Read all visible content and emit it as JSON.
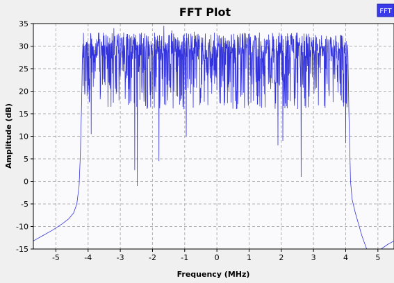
{
  "chart_data": {
    "type": "line",
    "title": "FFT Plot",
    "xlabel": "Frequency (MHz)",
    "ylabel": "Amplitude (dB)",
    "xlim": [
      -5.7,
      5.5
    ],
    "ylim": [
      -15,
      35
    ],
    "x_ticks": [
      -5,
      -4,
      -3,
      -2,
      -1,
      0,
      1,
      2,
      3,
      4,
      5
    ],
    "x_tick_labels": [
      "-5",
      "-4",
      "-3",
      "-2",
      "-1",
      "0",
      "1",
      "2",
      "3",
      "4",
      "5"
    ],
    "y_ticks": [
      -15,
      -10,
      -5,
      0,
      5,
      10,
      15,
      20,
      25,
      30,
      35
    ],
    "y_tick_labels": [
      "-15",
      "-10",
      "-5",
      "0",
      "5",
      "10",
      "15",
      "20",
      "25",
      "30",
      "35"
    ],
    "grid": true,
    "legend": {
      "position": "top-right",
      "entries": [
        "FFT"
      ]
    },
    "series": [
      {
        "name": "FFT",
        "color": "#3333dd",
        "x": [
          -5.7,
          -5.4,
          -5.1,
          -4.8,
          -4.6,
          -4.45,
          -4.35,
          -4.28,
          -4.24,
          -4.2,
          -4.18,
          -4.16
        ],
        "y": [
          -13.2,
          -12.0,
          -10.8,
          -9.4,
          -8.3,
          -7.0,
          -5.0,
          -1.0,
          6.0,
          18.0,
          27.0,
          30.5
        ],
        "band": {
          "x_start": -4.16,
          "x_end": 4.07,
          "typical_min": 16,
          "typical_max": 33,
          "peak": 34.5
        },
        "dips": [
          {
            "x": -3.9,
            "y": 10.5
          },
          {
            "x": -2.55,
            "y": 2.5
          },
          {
            "x": -2.47,
            "y": -1.0
          },
          {
            "x": -1.8,
            "y": 4.5
          },
          {
            "x": -0.95,
            "y": 10.0
          },
          {
            "x": 1.9,
            "y": 8.0
          },
          {
            "x": 2.05,
            "y": 9.0
          },
          {
            "x": 2.62,
            "y": 1.0
          },
          {
            "x": 4.0,
            "y": 8.5
          }
        ],
        "peaks": [
          {
            "x": -3.2,
            "y": 34.0
          },
          {
            "x": -2.4,
            "y": 32.8
          },
          {
            "x": -1.65,
            "y": 34.5
          },
          {
            "x": -1.4,
            "y": 33.5
          },
          {
            "x": -0.7,
            "y": 33.2
          }
        ],
        "x_tail": [
          4.07,
          4.1,
          4.15,
          4.2,
          4.3,
          4.4,
          4.5,
          4.6,
          4.65,
          4.72,
          4.8
        ],
        "y_tail": [
          28.0,
          15.0,
          0.0,
          -4.0,
          -7.0,
          -9.5,
          -12.0,
          -14.0,
          -15.0,
          -16.5,
          -17.5
        ],
        "x_edge": [
          5.1,
          5.3,
          5.5
        ],
        "y_edge": [
          -15.0,
          -14.0,
          -13.2
        ]
      }
    ]
  }
}
